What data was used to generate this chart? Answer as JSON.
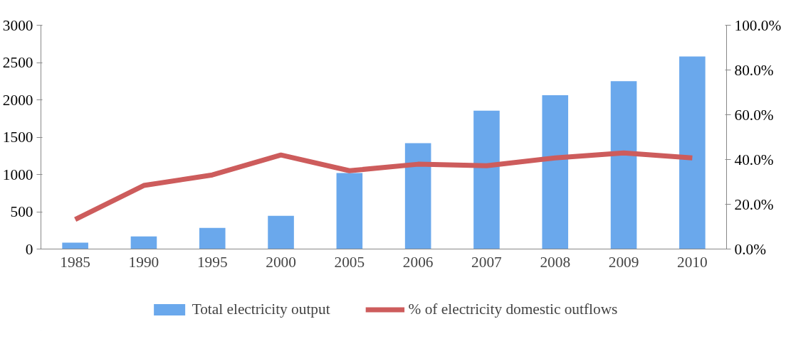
{
  "chart_data": {
    "type": "bar",
    "categories": [
      "1985",
      "1990",
      "1995",
      "2000",
      "2005",
      "2006",
      "2007",
      "2008",
      "2009",
      "2010"
    ],
    "series": [
      {
        "name": "Total electricity output",
        "color": "#6aa8ec",
        "values": [
          85,
          170,
          284,
          445,
          1020,
          1420,
          1855,
          2063,
          2250,
          2580
        ]
      },
      {
        "name": "% of electricity domestic outflows",
        "color": "#cd5c5c",
        "type": "line",
        "axis": "y2",
        "values": [
          13.2,
          28.4,
          33.1,
          42.0,
          35.0,
          37.9,
          37.2,
          40.7,
          42.9,
          40.7
        ]
      }
    ],
    "ylim": [
      0,
      3000
    ],
    "yticks": [
      0,
      500,
      1000,
      1500,
      2000,
      2500,
      3000
    ],
    "y2lim": [
      0,
      100
    ],
    "y2ticks": [
      {
        "value": 0,
        "label": "0.0%"
      },
      {
        "value": 20,
        "label": "20.0%"
      },
      {
        "value": 40,
        "label": "40.0%"
      },
      {
        "value": 60,
        "label": "60.0%"
      },
      {
        "value": 80,
        "label": "80.0%"
      },
      {
        "value": 100,
        "label": "100.0%"
      }
    ],
    "grid": false,
    "legend": "bottom",
    "marker": "none",
    "line_style": "solid"
  }
}
